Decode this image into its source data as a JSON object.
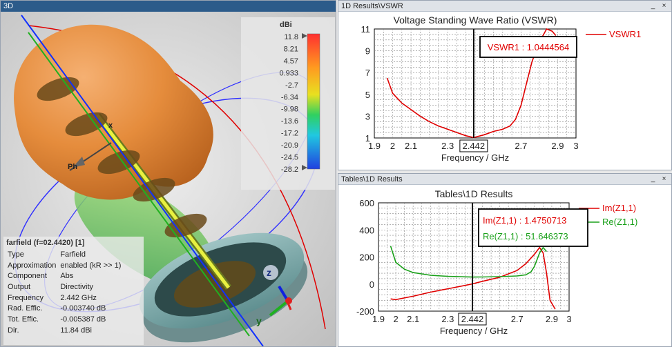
{
  "panel3d": {
    "title": "3D",
    "colorbar": {
      "unit": "dBi",
      "ticks": [
        "11.8",
        "8.21",
        "4.57",
        "0.933",
        "-2.7",
        "-6.34",
        "-9.98",
        "-13.6",
        "-17.2",
        "-20.9",
        "-24.5",
        "-28.2"
      ]
    },
    "axis_labels": {
      "x": "x",
      "y": "y",
      "z": "z",
      "phi": "Ph"
    },
    "info": {
      "header": "farfield (f=02.4420) [1]",
      "rows": [
        {
          "key": "Type",
          "value": "Farfield"
        },
        {
          "key": "Approximation",
          "value": "enabled (kR >> 1)"
        },
        {
          "key": "Component",
          "value": "Abs"
        },
        {
          "key": "Output",
          "value": "Directivity"
        },
        {
          "key": "Frequency",
          "value": "2.442 GHz"
        },
        {
          "key": "Rad. Effic.",
          "value": "-0.003740 dB"
        },
        {
          "key": "Tot. Effic.",
          "value": "-0.005387 dB"
        },
        {
          "key": "Dir.",
          "value": "11.84 dBi"
        }
      ]
    }
  },
  "panel_vswr": {
    "window_title": "1D Results\\VSWR",
    "controls": {
      "minimize": "_",
      "close": "×"
    }
  },
  "panel_tables": {
    "window_title": "Tables\\1D Results",
    "controls": {
      "minimize": "_",
      "close": "×"
    }
  },
  "chart_data": [
    {
      "type": "line",
      "title": "Voltage Standing Wave Ratio (VSWR)",
      "xlabel": "Frequency / GHz",
      "ylabel": "",
      "xlim": [
        1.9,
        3.0
      ],
      "ylim": [
        1,
        11
      ],
      "xticks": [
        "1.9",
        "2",
        "2.1",
        "2.3",
        "2.7",
        "2.9",
        "3"
      ],
      "xtick_values": [
        1.9,
        2.0,
        2.1,
        2.3,
        2.7,
        2.9,
        3.0
      ],
      "yticks": [
        "1",
        "3",
        "5",
        "7",
        "9",
        "11"
      ],
      "ytick_values": [
        1,
        3,
        5,
        7,
        9,
        11
      ],
      "grid": true,
      "marker": {
        "x": 2.442,
        "label": "2.442"
      },
      "annotation": "VSWR1 : 1.0444564",
      "legend": [
        "VSWR1"
      ],
      "series": [
        {
          "name": "VSWR1",
          "color": "#e00000",
          "x": [
            1.97,
            2.0,
            2.05,
            2.1,
            2.15,
            2.2,
            2.25,
            2.3,
            2.35,
            2.4,
            2.442,
            2.5,
            2.55,
            2.6,
            2.64,
            2.67,
            2.7,
            2.73,
            2.76,
            2.8,
            2.84,
            2.87,
            2.89
          ],
          "y": [
            6.5,
            5.1,
            4.2,
            3.6,
            3.0,
            2.5,
            2.1,
            1.8,
            1.5,
            1.2,
            1.04,
            1.3,
            1.6,
            1.8,
            2.1,
            2.7,
            4.0,
            6.0,
            8.0,
            9.8,
            11.0,
            10.8,
            10.4
          ]
        }
      ]
    },
    {
      "type": "line",
      "title": "Tables\\1D Results",
      "xlabel": "Frequency / GHz",
      "ylabel": "",
      "xlim": [
        1.9,
        3.0
      ],
      "ylim": [
        -200,
        600
      ],
      "xticks": [
        "1.9",
        "2",
        "2.1",
        "2.3",
        "2.7",
        "2.9",
        "3"
      ],
      "xtick_values": [
        1.9,
        2.0,
        2.1,
        2.3,
        2.7,
        2.9,
        3.0
      ],
      "yticks": [
        "-200",
        "0",
        "200",
        "400",
        "600"
      ],
      "ytick_values": [
        -200,
        0,
        200,
        400,
        600
      ],
      "grid": true,
      "marker": {
        "x": 2.442,
        "label": "2.442"
      },
      "annotations": [
        "Im(Z1,1) : 1.4750713",
        "Re(Z1,1) : 51.646373"
      ],
      "legend": [
        "Im(Z1,1)",
        "Re(Z1,1)"
      ],
      "series": [
        {
          "name": "Im(Z1,1)",
          "color": "#e00000",
          "x": [
            1.97,
            2.0,
            2.1,
            2.2,
            2.3,
            2.4,
            2.442,
            2.5,
            2.6,
            2.7,
            2.75,
            2.8,
            2.83,
            2.85,
            2.87,
            2.89,
            2.92
          ],
          "y": [
            -110,
            -115,
            -90,
            -60,
            -35,
            -10,
            1.5,
            20,
            50,
            100,
            150,
            220,
            270,
            230,
            80,
            -120,
            -185
          ]
        },
        {
          "name": "Re(Z1,1)",
          "color": "#1aa01a",
          "x": [
            1.97,
            2.0,
            2.05,
            2.1,
            2.2,
            2.3,
            2.4,
            2.442,
            2.5,
            2.6,
            2.7,
            2.75,
            2.78,
            2.8,
            2.83,
            2.85,
            2.87
          ],
          "y": [
            280,
            160,
            110,
            85,
            65,
            57,
            53,
            51.6,
            52,
            55,
            60,
            68,
            90,
            130,
            230,
            270,
            240
          ]
        }
      ]
    }
  ]
}
